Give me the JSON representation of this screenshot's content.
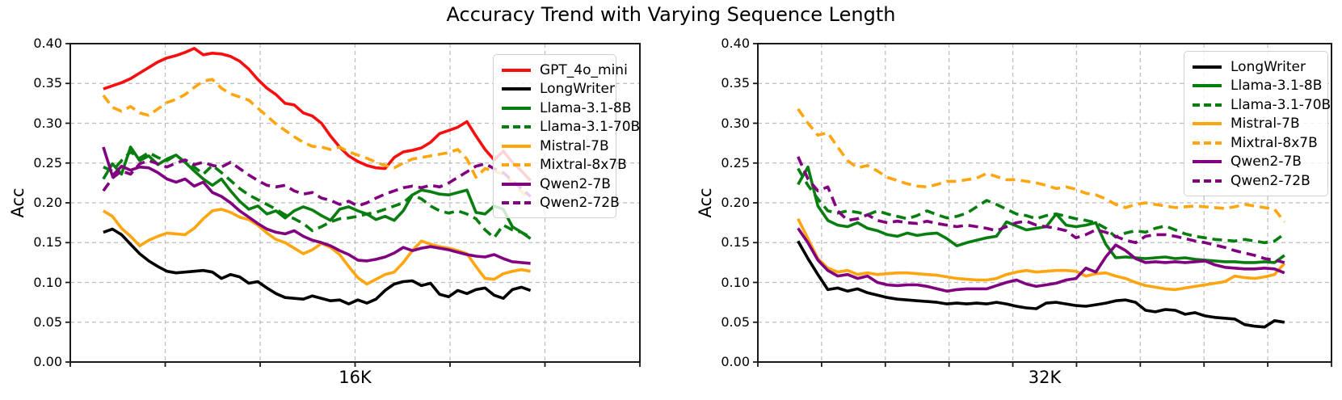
{
  "title": "Accuracy Trend with Varying Sequence Length",
  "colors": {
    "red": "#f80e0e",
    "black": "#000000",
    "green": "#087d10",
    "orange": "#ffa510",
    "purple": "#800080",
    "grid": "#bcbcbc",
    "spine": "#1a1a1a",
    "background": "#ffffff"
  },
  "chart_data": [
    {
      "type": "line",
      "xlabel": "16K",
      "ylabel": "Acc",
      "ylim": [
        0.0,
        0.4
      ],
      "grid": true,
      "legend_position": "upper right",
      "yticks": [
        "0.00",
        "0.05",
        "0.10",
        "0.15",
        "0.20",
        "0.25",
        "0.30",
        "0.35",
        "0.40"
      ],
      "series": [
        {
          "name": "GPT_4o_mini",
          "color": "red",
          "style": "solid",
          "values": [
            0.343,
            0.347,
            0.351,
            0.356,
            0.363,
            0.37,
            0.377,
            0.382,
            0.385,
            0.389,
            0.394,
            0.386,
            0.388,
            0.387,
            0.384,
            0.378,
            0.368,
            0.355,
            0.344,
            0.336,
            0.325,
            0.323,
            0.313,
            0.309,
            0.3,
            0.284,
            0.27,
            0.259,
            0.252,
            0.247,
            0.244,
            0.243,
            0.257,
            0.264,
            0.266,
            0.269,
            0.276,
            0.287,
            0.291,
            0.295,
            0.302,
            0.284,
            0.267,
            0.254,
            0.265,
            0.251,
            0.24,
            0.228
          ]
        },
        {
          "name": "LongWriter",
          "color": "black",
          "style": "solid",
          "values": [
            0.163,
            0.167,
            0.16,
            0.148,
            0.136,
            0.127,
            0.12,
            0.114,
            0.112,
            0.113,
            0.114,
            0.115,
            0.113,
            0.105,
            0.11,
            0.107,
            0.099,
            0.101,
            0.093,
            0.086,
            0.081,
            0.08,
            0.079,
            0.083,
            0.08,
            0.077,
            0.078,
            0.073,
            0.078,
            0.074,
            0.079,
            0.09,
            0.098,
            0.101,
            0.102,
            0.096,
            0.099,
            0.085,
            0.082,
            0.09,
            0.086,
            0.091,
            0.093,
            0.084,
            0.08,
            0.091,
            0.094,
            0.09
          ]
        },
        {
          "name": "Llama-3.1-8B",
          "color": "green",
          "style": "solid",
          "values": [
            0.23,
            0.249,
            0.236,
            0.27,
            0.253,
            0.259,
            0.248,
            0.255,
            0.26,
            0.251,
            0.24,
            0.23,
            0.222,
            0.23,
            0.215,
            0.202,
            0.192,
            0.196,
            0.186,
            0.19,
            0.181,
            0.19,
            0.195,
            0.191,
            0.184,
            0.178,
            0.192,
            0.195,
            0.19,
            0.186,
            0.179,
            0.183,
            0.178,
            0.19,
            0.21,
            0.216,
            0.214,
            0.211,
            0.21,
            0.213,
            0.216,
            0.188,
            0.186,
            0.196,
            0.192,
            0.17,
            0.163,
            0.155
          ]
        },
        {
          "name": "Llama-3.1-70B",
          "color": "green",
          "style": "dashed",
          "values": [
            0.245,
            0.24,
            0.253,
            0.264,
            0.256,
            0.263,
            0.257,
            0.253,
            0.26,
            0.251,
            0.245,
            0.236,
            0.247,
            0.238,
            0.228,
            0.218,
            0.21,
            0.204,
            0.198,
            0.192,
            0.185,
            0.18,
            0.174,
            0.165,
            0.17,
            0.176,
            0.18,
            0.181,
            0.183,
            0.186,
            0.188,
            0.192,
            0.196,
            0.2,
            0.21,
            0.205,
            0.196,
            0.19,
            0.187,
            0.19,
            0.186,
            0.18,
            0.166,
            0.156,
            0.172,
            0.166,
            0.163,
            0.157
          ]
        },
        {
          "name": "Mistral-7B",
          "color": "orange",
          "style": "solid",
          "values": [
            0.19,
            0.183,
            0.168,
            0.158,
            0.146,
            0.153,
            0.158,
            0.162,
            0.161,
            0.16,
            0.168,
            0.18,
            0.19,
            0.192,
            0.188,
            0.182,
            0.179,
            0.172,
            0.162,
            0.154,
            0.15,
            0.143,
            0.136,
            0.141,
            0.149,
            0.144,
            0.135,
            0.12,
            0.106,
            0.098,
            0.104,
            0.11,
            0.113,
            0.125,
            0.14,
            0.152,
            0.148,
            0.145,
            0.143,
            0.14,
            0.136,
            0.12,
            0.105,
            0.104,
            0.111,
            0.114,
            0.116,
            0.114
          ]
        },
        {
          "name": "Mixtral-8x7B",
          "color": "orange",
          "style": "dashed",
          "values": [
            0.335,
            0.32,
            0.315,
            0.321,
            0.313,
            0.31,
            0.318,
            0.326,
            0.33,
            0.336,
            0.345,
            0.353,
            0.355,
            0.344,
            0.337,
            0.333,
            0.329,
            0.319,
            0.309,
            0.299,
            0.291,
            0.283,
            0.276,
            0.271,
            0.27,
            0.267,
            0.27,
            0.264,
            0.26,
            0.256,
            0.251,
            0.247,
            0.244,
            0.25,
            0.255,
            0.257,
            0.259,
            0.261,
            0.263,
            0.267,
            0.255,
            0.232,
            0.243,
            0.24,
            0.236,
            0.225,
            0.214,
            0.204
          ]
        },
        {
          "name": "Qwen2-7B",
          "color": "purple",
          "style": "solid",
          "values": [
            0.27,
            0.234,
            0.246,
            0.241,
            0.245,
            0.244,
            0.238,
            0.23,
            0.226,
            0.23,
            0.221,
            0.226,
            0.213,
            0.208,
            0.2,
            0.19,
            0.182,
            0.174,
            0.167,
            0.163,
            0.161,
            0.165,
            0.158,
            0.153,
            0.15,
            0.146,
            0.14,
            0.135,
            0.128,
            0.127,
            0.129,
            0.132,
            0.137,
            0.144,
            0.14,
            0.143,
            0.145,
            0.143,
            0.141,
            0.138,
            0.135,
            0.133,
            0.132,
            0.135,
            0.13,
            0.126,
            0.125,
            0.124
          ]
        },
        {
          "name": "Qwen2-72B",
          "color": "purple",
          "style": "dashed",
          "values": [
            0.215,
            0.231,
            0.24,
            0.236,
            0.249,
            0.253,
            0.249,
            0.245,
            0.25,
            0.254,
            0.248,
            0.251,
            0.247,
            0.245,
            0.251,
            0.243,
            0.235,
            0.228,
            0.222,
            0.22,
            0.222,
            0.215,
            0.211,
            0.213,
            0.206,
            0.203,
            0.198,
            0.202,
            0.196,
            0.2,
            0.206,
            0.211,
            0.215,
            0.219,
            0.221,
            0.219,
            0.222,
            0.22,
            0.225,
            0.232,
            0.239,
            0.246,
            0.249,
            0.243,
            0.238,
            0.228,
            0.218,
            0.208
          ]
        }
      ]
    },
    {
      "type": "line",
      "xlabel": "32K",
      "ylabel": "Acc",
      "ylim": [
        0.0,
        0.4
      ],
      "grid": true,
      "legend_position": "upper right",
      "yticks": [
        "0.00",
        "0.05",
        "0.10",
        "0.15",
        "0.20",
        "0.25",
        "0.30",
        "0.35",
        "0.40"
      ],
      "series": [
        {
          "name": "LongWriter",
          "color": "black",
          "style": "solid",
          "values": [
            0.152,
            0.13,
            0.11,
            0.091,
            0.093,
            0.089,
            0.092,
            0.087,
            0.084,
            0.081,
            0.079,
            0.078,
            0.077,
            0.076,
            0.075,
            0.073,
            0.074,
            0.073,
            0.074,
            0.073,
            0.075,
            0.073,
            0.07,
            0.068,
            0.067,
            0.074,
            0.075,
            0.073,
            0.071,
            0.07,
            0.072,
            0.074,
            0.077,
            0.078,
            0.075,
            0.065,
            0.063,
            0.066,
            0.065,
            0.06,
            0.062,
            0.058,
            0.056,
            0.055,
            0.054,
            0.047,
            0.045,
            0.044,
            0.052,
            0.05
          ]
        },
        {
          "name": "Llama-3.1-8B",
          "color": "green",
          "style": "solid",
          "values": [
            0.223,
            0.245,
            0.196,
            0.178,
            0.172,
            0.17,
            0.175,
            0.168,
            0.165,
            0.16,
            0.158,
            0.162,
            0.159,
            0.161,
            0.162,
            0.155,
            0.146,
            0.15,
            0.153,
            0.156,
            0.158,
            0.176,
            0.171,
            0.166,
            0.168,
            0.17,
            0.186,
            0.172,
            0.17,
            0.172,
            0.175,
            0.148,
            0.131,
            0.132,
            0.131,
            0.13,
            0.131,
            0.132,
            0.13,
            0.131,
            0.129,
            0.128,
            0.127,
            0.126,
            0.126,
            0.125,
            0.125,
            0.126,
            0.125,
            0.134
          ]
        },
        {
          "name": "Llama-3.1-70B",
          "color": "green",
          "style": "dashed",
          "values": [
            0.243,
            0.222,
            0.205,
            0.19,
            0.187,
            0.19,
            0.188,
            0.185,
            0.19,
            0.186,
            0.183,
            0.18,
            0.184,
            0.19,
            0.185,
            0.181,
            0.183,
            0.187,
            0.195,
            0.203,
            0.198,
            0.192,
            0.186,
            0.184,
            0.18,
            0.184,
            0.186,
            0.183,
            0.18,
            0.178,
            0.175,
            0.168,
            0.157,
            0.162,
            0.165,
            0.163,
            0.168,
            0.171,
            0.166,
            0.161,
            0.158,
            0.156,
            0.154,
            0.153,
            0.152,
            0.154,
            0.152,
            0.15,
            0.152,
            0.161
          ]
        },
        {
          "name": "Mistral-7B",
          "color": "orange",
          "style": "solid",
          "values": [
            0.18,
            0.155,
            0.13,
            0.118,
            0.113,
            0.115,
            0.11,
            0.112,
            0.11,
            0.111,
            0.112,
            0.112,
            0.111,
            0.11,
            0.109,
            0.107,
            0.105,
            0.104,
            0.103,
            0.103,
            0.105,
            0.11,
            0.113,
            0.115,
            0.113,
            0.114,
            0.115,
            0.115,
            0.114,
            0.108,
            0.111,
            0.112,
            0.108,
            0.105,
            0.1,
            0.096,
            0.094,
            0.092,
            0.091,
            0.093,
            0.095,
            0.097,
            0.099,
            0.101,
            0.108,
            0.106,
            0.105,
            0.107,
            0.11,
            0.124
          ]
        },
        {
          "name": "Mixtral-8x7B",
          "color": "orange",
          "style": "dashed",
          "values": [
            0.318,
            0.3,
            0.285,
            0.288,
            0.27,
            0.253,
            0.244,
            0.247,
            0.24,
            0.232,
            0.228,
            0.224,
            0.221,
            0.22,
            0.223,
            0.227,
            0.227,
            0.229,
            0.231,
            0.237,
            0.233,
            0.229,
            0.229,
            0.227,
            0.225,
            0.222,
            0.218,
            0.22,
            0.217,
            0.212,
            0.21,
            0.205,
            0.198,
            0.194,
            0.198,
            0.2,
            0.198,
            0.196,
            0.194,
            0.195,
            0.196,
            0.195,
            0.194,
            0.193,
            0.195,
            0.198,
            0.196,
            0.194,
            0.192,
            0.176
          ]
        },
        {
          "name": "Qwen2-7B",
          "color": "purple",
          "style": "solid",
          "values": [
            0.168,
            0.15,
            0.128,
            0.115,
            0.108,
            0.11,
            0.105,
            0.108,
            0.1,
            0.097,
            0.096,
            0.097,
            0.097,
            0.095,
            0.092,
            0.089,
            0.091,
            0.092,
            0.092,
            0.092,
            0.096,
            0.1,
            0.103,
            0.098,
            0.095,
            0.097,
            0.099,
            0.103,
            0.105,
            0.118,
            0.113,
            0.132,
            0.147,
            0.14,
            0.13,
            0.125,
            0.126,
            0.125,
            0.126,
            0.125,
            0.126,
            0.127,
            0.122,
            0.119,
            0.118,
            0.117,
            0.117,
            0.118,
            0.117,
            0.112
          ]
        },
        {
          "name": "Qwen2-72B",
          "color": "purple",
          "style": "dashed",
          "values": [
            0.258,
            0.23,
            0.215,
            0.22,
            0.19,
            0.178,
            0.18,
            0.185,
            0.178,
            0.175,
            0.177,
            0.175,
            0.174,
            0.177,
            0.174,
            0.172,
            0.17,
            0.172,
            0.17,
            0.168,
            0.165,
            0.17,
            0.175,
            0.177,
            0.172,
            0.17,
            0.168,
            0.165,
            0.156,
            0.16,
            0.166,
            0.163,
            0.158,
            0.153,
            0.15,
            0.158,
            0.16,
            0.16,
            0.158,
            0.155,
            0.152,
            0.15,
            0.147,
            0.144,
            0.14,
            0.137,
            0.134,
            0.13,
            0.128,
            0.125
          ]
        }
      ]
    }
  ]
}
